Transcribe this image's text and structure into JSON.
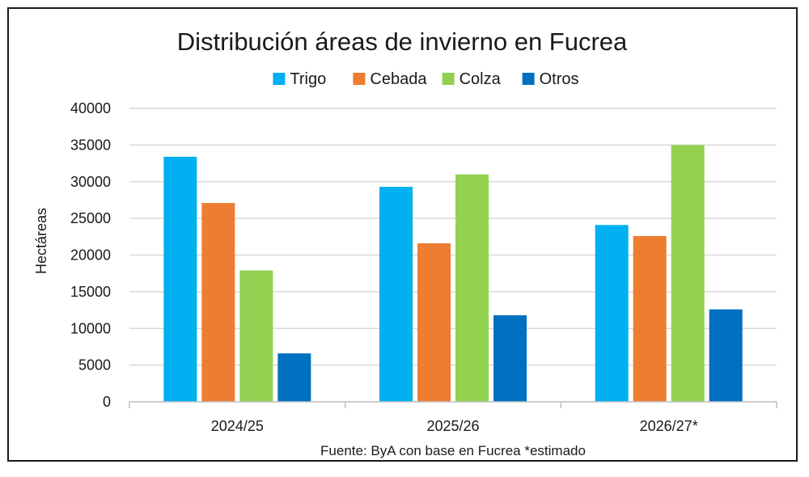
{
  "chart_data": {
    "type": "bar",
    "title": "Distribución áreas de invierno en Fucrea",
    "xlabel": "",
    "ylabel": "Hectáreas",
    "categories": [
      "2024/25",
      "2025/26",
      "2026/27*"
    ],
    "series": [
      {
        "name": "Trigo",
        "color": "#00B0F0",
        "values": [
          33400,
          29300,
          24100
        ]
      },
      {
        "name": "Cebada",
        "color": "#ED7D31",
        "values": [
          27100,
          21600,
          22600
        ]
      },
      {
        "name": "Colza",
        "color": "#92D050",
        "values": [
          17900,
          31000,
          35000
        ]
      },
      {
        "name": "Otros",
        "color": "#0070C0",
        "values": [
          6600,
          11800,
          12600
        ]
      }
    ],
    "ylim": [
      0,
      40000
    ],
    "yticks": [
      "0",
      "5000",
      "10000",
      "15000",
      "20000",
      "25000",
      "30000",
      "35000",
      "40000"
    ],
    "grid": true,
    "legend_position": "top-center",
    "source_note": "Fuente: ByA con base en Fucrea *estimado"
  },
  "colors": {
    "grid": "#D9D9D9",
    "axis": "#BFBFBF",
    "text": "#1a1a1a"
  }
}
